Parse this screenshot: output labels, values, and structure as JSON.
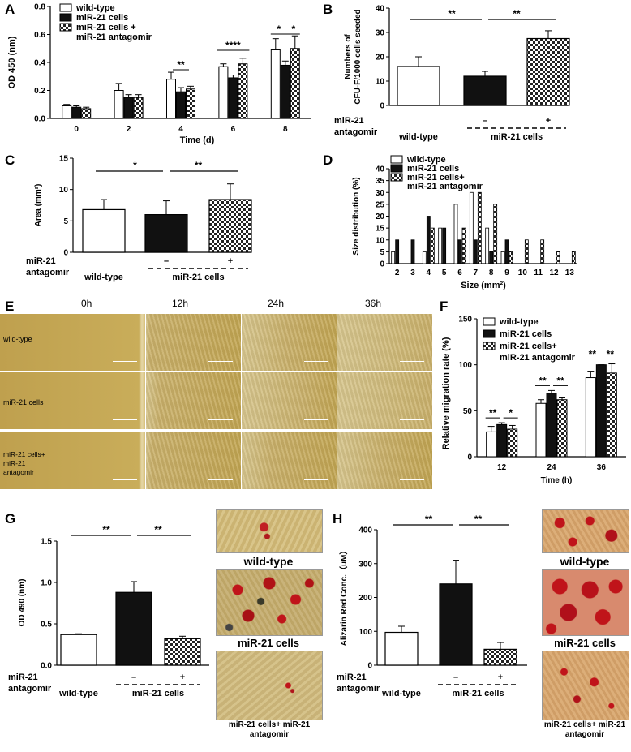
{
  "panels": {
    "A": "A",
    "B": "B",
    "C": "C",
    "D": "D",
    "E": "E",
    "F": "F",
    "G": "G",
    "H": "H"
  },
  "legends": {
    "wt": "wild-type",
    "mir": "miR-21 cells",
    "antag_line1": "miR-21 cells +",
    "antag_line2": "miR-21 antagomir",
    "antag_line1_nospace": "miR-21 cells+"
  },
  "conditions": {
    "mir_label": "miR-21",
    "antag_label": "antagomir",
    "minus": "–",
    "plus": "+",
    "wt_label": "wild-type",
    "mir_cells_label": "miR-21 cells"
  },
  "colors": {
    "wt": "#ffffff",
    "mir": "#111111",
    "antag": "checkered",
    "axis": "#000000",
    "alizarin": "#c0141a",
    "bright": "#d2b85c"
  },
  "chart_data": [
    {
      "id": "A",
      "type": "bar",
      "xlabel": "Time (d)",
      "ylabel": "OD 450 (nm)",
      "ylim": [
        0,
        0.8
      ],
      "yticks": [
        "0.0",
        "0.2",
        "0.4",
        "0.6",
        "0.8"
      ],
      "categories": [
        "0",
        "2",
        "4",
        "6",
        "8"
      ],
      "series": [
        {
          "name": "wild-type",
          "values": [
            0.09,
            0.2,
            0.28,
            0.37,
            0.49
          ],
          "errors": [
            0.01,
            0.05,
            0.05,
            0.02,
            0.08
          ]
        },
        {
          "name": "miR-21 cells",
          "values": [
            0.08,
            0.15,
            0.19,
            0.29,
            0.38
          ],
          "errors": [
            0.01,
            0.02,
            0.03,
            0.02,
            0.03
          ]
        },
        {
          "name": "miR-21 cells + miR-21 antagomir",
          "values": [
            0.07,
            0.15,
            0.21,
            0.39,
            0.5
          ],
          "errors": [
            0.01,
            0.02,
            0.02,
            0.04,
            0.09
          ]
        }
      ],
      "annotations": [
        "**",
        "****",
        "*",
        "*"
      ]
    },
    {
      "id": "B",
      "type": "bar",
      "ylabel_line1": "Numbers of",
      "ylabel_line2": "CFU-F/1000 cells seeded",
      "ylim": [
        0,
        40
      ],
      "yticks": [
        "0",
        "10",
        "20",
        "30",
        "40"
      ],
      "categories": [
        "wild-type",
        "miR-21 cells",
        "miR-21 cells + miR-21 antagomir"
      ],
      "values": [
        16,
        12,
        27.5
      ],
      "errors": [
        4,
        2,
        3.2
      ],
      "annotations": [
        "**",
        "**"
      ]
    },
    {
      "id": "C",
      "type": "bar",
      "ylabel": "Area (mm²)",
      "ylim": [
        0,
        15
      ],
      "yticks": [
        "0",
        "5",
        "10",
        "15"
      ],
      "categories": [
        "wild-type",
        "miR-21 cells",
        "miR-21 cells + miR-21 antagomir"
      ],
      "values": [
        6.8,
        6.0,
        8.4
      ],
      "errors": [
        1.6,
        2.2,
        2.5
      ],
      "annotations": [
        "*",
        "**"
      ]
    },
    {
      "id": "D",
      "type": "bar",
      "xlabel": "Size (mm²)",
      "ylabel": "Size distribution (%)",
      "ylim": [
        0,
        40
      ],
      "yticks": [
        "0",
        "5",
        "10",
        "15",
        "20",
        "25",
        "30",
        "35",
        "40"
      ],
      "categories": [
        "2",
        "3",
        "4",
        "5",
        "6",
        "7",
        "8",
        "9",
        "10",
        "11",
        "12",
        "13"
      ],
      "series": [
        {
          "name": "wild-type",
          "values": [
            5,
            0,
            5,
            15,
            25,
            30,
            15,
            5,
            0,
            0,
            0,
            0
          ]
        },
        {
          "name": "miR-21 cells",
          "values": [
            10,
            10,
            20,
            15,
            10,
            10,
            5,
            10,
            0,
            0,
            0,
            0
          ]
        },
        {
          "name": "miR-21 cells+ miR-21 antagomir",
          "values": [
            0,
            0,
            15,
            0,
            15,
            30,
            25,
            5,
            10,
            10,
            5,
            5
          ]
        }
      ]
    },
    {
      "id": "F",
      "type": "bar",
      "xlabel": "Time (h)",
      "ylabel": "Relative migration rate (%)",
      "ylim": [
        0,
        150
      ],
      "yticks": [
        "0",
        "50",
        "100",
        "150"
      ],
      "categories": [
        "12",
        "24",
        "36"
      ],
      "series": [
        {
          "name": "wild-type",
          "values": [
            27,
            58,
            86
          ],
          "errors": [
            6,
            4,
            7
          ]
        },
        {
          "name": "miR-21 cells",
          "values": [
            35,
            69,
            100
          ],
          "errors": [
            2,
            3,
            0
          ]
        },
        {
          "name": "miR-21 cells+ miR-21 antagomir",
          "values": [
            30,
            62,
            91
          ],
          "errors": [
            4,
            2,
            10
          ]
        }
      ],
      "annotations": [
        "**",
        "*",
        "**",
        "**",
        "**",
        "**"
      ]
    },
    {
      "id": "G",
      "type": "bar",
      "ylabel": "OD 490 (nm)",
      "ylim": [
        0,
        1.5
      ],
      "yticks": [
        "0.0",
        "0.5",
        "1.0",
        "1.5"
      ],
      "categories": [
        "wild-type",
        "miR-21 cells",
        "miR-21 cells + miR-21 antagomir"
      ],
      "values": [
        0.37,
        0.88,
        0.32
      ],
      "errors": [
        0.01,
        0.13,
        0.03
      ],
      "annotations": [
        "**",
        "**"
      ]
    },
    {
      "id": "H",
      "type": "bar",
      "ylabel": "Alizarin Red Conc.（uM）",
      "ylim": [
        0,
        400
      ],
      "yticks": [
        "0",
        "100",
        "200",
        "300",
        "400"
      ],
      "categories": [
        "wild-type",
        "miR-21 cells",
        "miR-21 cells + miR-21 antagomir"
      ],
      "values": [
        97,
        240,
        47
      ],
      "errors": [
        18,
        70,
        20
      ],
      "annotations": [
        "**",
        "**"
      ]
    }
  ],
  "panelE": {
    "columns": [
      "0h",
      "12h",
      "24h",
      "36h"
    ],
    "rows": [
      "wild-type",
      "miR-21 cells",
      "miR-21 cells+ miR-21 antagomir"
    ]
  },
  "micrographs": {
    "g_captions": [
      "wild-type",
      "miR-21 cells",
      "miR-21 cells+ miR-21 antagomir"
    ],
    "h_captions": [
      "wild-type",
      "miR-21 cells",
      "miR-21 cells+ miR-21 antagomir"
    ]
  }
}
